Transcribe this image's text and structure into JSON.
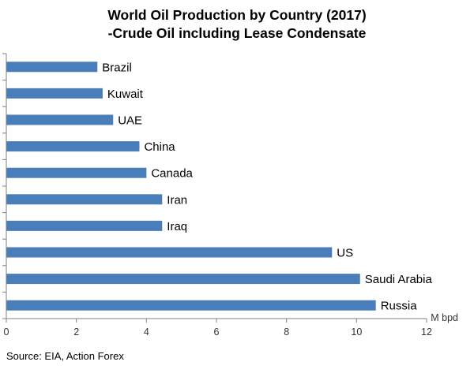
{
  "title_line1": "World Oil Production by Country (2017)",
  "title_line2": "-Crude Oil including Lease Condensate",
  "source": "Source: EIA, Action Forex",
  "chart_data": {
    "type": "bar",
    "orientation": "horizontal",
    "title": "World Oil Production by Country (2017) -Crude Oil including Lease Condensate",
    "categories": [
      "Brazil",
      "Kuwait",
      "UAE",
      "China",
      "Canada",
      "Iran",
      "Iraq",
      "US",
      "Saudi Arabia",
      "Russia"
    ],
    "values": [
      2.6,
      2.75,
      3.05,
      3.8,
      4.0,
      4.45,
      4.45,
      9.3,
      10.1,
      10.55
    ],
    "unit_label": "M bpd",
    "xlim": [
      0,
      12
    ],
    "ticks": [
      "0",
      "2",
      "4",
      "6",
      "8",
      "10",
      "12"
    ],
    "bar_color": "#4a7ebb",
    "grid": false,
    "legend": "none"
  }
}
